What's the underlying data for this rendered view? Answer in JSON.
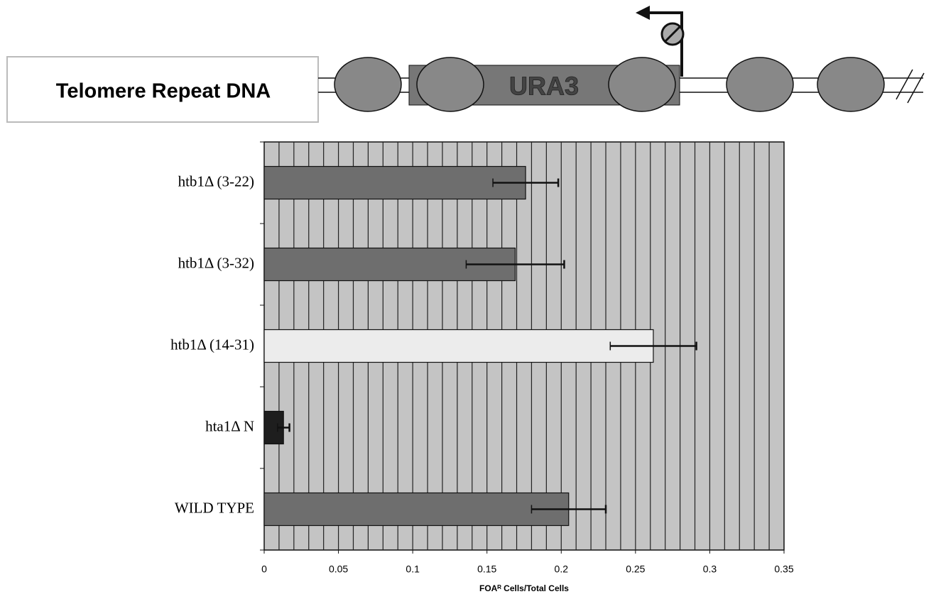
{
  "diagram": {
    "label": "Telomere Repeat DNA",
    "gene": "URA3"
  },
  "chart_data": {
    "type": "hbar",
    "categories": [
      "htb1Δ (3-22)",
      "htb1Δ (3-32)",
      "htb1Δ (14-31)",
      "hta1Δ N",
      "WILD TYPE"
    ],
    "values": [
      0.176,
      0.169,
      0.262,
      0.013,
      0.205
    ],
    "errors": [
      0.022,
      0.033,
      0.029,
      0.004,
      0.025
    ],
    "colors": [
      "#6e6e6e",
      "#6e6e6e",
      "#ececec",
      "#1e1e1e",
      "#6e6e6e"
    ],
    "xlabel": "FOAᴿ Cells/Total Cells",
    "xlim": [
      0,
      0.35
    ],
    "xticks": [
      0,
      0.05,
      0.1,
      0.15,
      0.2,
      0.25,
      0.3,
      0.35
    ],
    "minor_grid_step": 0.01,
    "grid": true
  }
}
